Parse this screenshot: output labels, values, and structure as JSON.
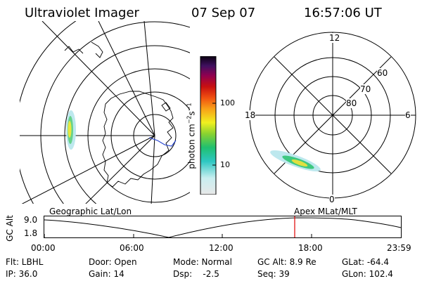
{
  "header": {
    "instrument": "Ultraviolet Imager",
    "date": "07 Sep 07",
    "time": "16:57:06 UT"
  },
  "colorbar": {
    "unit_label": "photon cm",
    "unit_exp1": "−2",
    "unit_mid": "s",
    "unit_exp2": "−1",
    "tick_labels": [
      "100",
      "10"
    ]
  },
  "polar_plot": {
    "mlt_labels": [
      "12",
      "18",
      "6",
      "0"
    ],
    "lat_labels": [
      "60",
      "70",
      "80"
    ]
  },
  "timeline": {
    "left_label": "Geographic Lat/Lon",
    "right_label": "Apex  MLat/MLT",
    "axis_label": "GC Alt",
    "y_max": "9.0",
    "y_min": "1.8",
    "time_ticks": [
      "00:00",
      "06:00",
      "12:00",
      "18:00",
      "23:59"
    ]
  },
  "info": {
    "filter": "Flt: LBHL",
    "ip": "IP: 36.0",
    "door": "Door: Open",
    "gain": "Gain: 14",
    "mode": "Mode: Normal",
    "dsp": "Dsp:    -2.5",
    "gc_alt": "GC Alt: 8.9 Re",
    "seq": "Seq: 39",
    "glat": "GLat: -64.4",
    "glon": "GLon: 102.4"
  },
  "colors": {
    "marker": "#e00000",
    "coast_blue": "#1f3fd0"
  }
}
